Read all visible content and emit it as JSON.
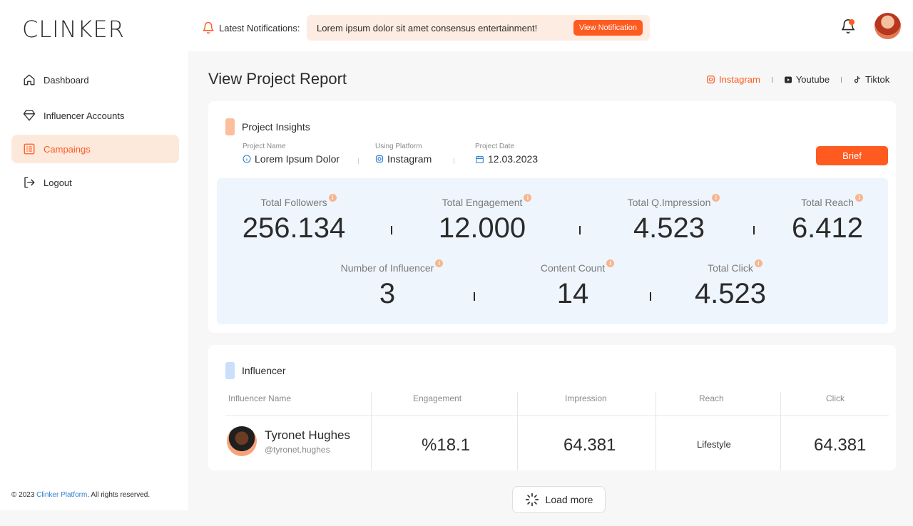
{
  "app": {
    "logo": "CLINKER"
  },
  "header": {
    "notifications_label": "Latest Notifications:",
    "notification_text": "Lorem ipsum dolor sit amet consensus entertainment!",
    "notification_button": "View Notification"
  },
  "sidebar": {
    "items": [
      {
        "label": "Dashboard",
        "icon": "home-icon",
        "active": false
      },
      {
        "label": "Influencer Accounts",
        "icon": "diamond-icon",
        "active": false
      },
      {
        "label": "Campaings",
        "icon": "list-icon",
        "active": true
      },
      {
        "label": "Logout",
        "icon": "logout-icon",
        "active": false
      }
    ],
    "footer_prefix": "© 2023 ",
    "footer_brand": "Clinker Platform",
    "footer_suffix": ". All rights reserved."
  },
  "page": {
    "title": "View Project Report",
    "platform_tabs": [
      {
        "label": "Instagram",
        "icon": "instagram-icon",
        "active": true
      },
      {
        "label": "Youtube",
        "icon": "youtube-icon",
        "active": false
      },
      {
        "label": "Tiktok",
        "icon": "tiktok-icon",
        "active": false
      }
    ]
  },
  "insights": {
    "title": "Project Insights",
    "project_name_label": "Project Name",
    "project_name_value": "Lorem Ipsum Dolor",
    "platform_label": "Using Platform",
    "platform_value": "Instagram",
    "date_label": "Project Date",
    "date_value": "12.03.2023",
    "brief_button": "Brief",
    "stats_row1": [
      {
        "label": "Total Followers",
        "value": "256.134"
      },
      {
        "label": "Total Engagement",
        "value": "12.000"
      },
      {
        "label": "Total Q.Impression",
        "value": "4.523"
      },
      {
        "label": "Total Reach",
        "value": "6.412"
      }
    ],
    "stats_row2": [
      {
        "label": "Number of Influencer",
        "value": "3"
      },
      {
        "label": "Content Count",
        "value": "14"
      },
      {
        "label": "Total Click",
        "value": "4.523"
      }
    ],
    "info_glyph": "i"
  },
  "influencer": {
    "title": "Influencer",
    "columns": [
      "Influencer Name",
      "Engagement",
      "Impression",
      "Reach",
      "Click"
    ],
    "rows": [
      {
        "name": "Tyronet Hughes",
        "handle": "@tyronet.hughes",
        "engagement": "%18.1",
        "impression": "64.381",
        "reach": "Lifestyle",
        "click": "64.381"
      }
    ]
  },
  "load_more": "Load more",
  "colors": {
    "accent": "#ff5a1f",
    "accent_soft": "#fde9dc",
    "stats_bg": "#eef5fd",
    "link": "#2f7fd1"
  }
}
